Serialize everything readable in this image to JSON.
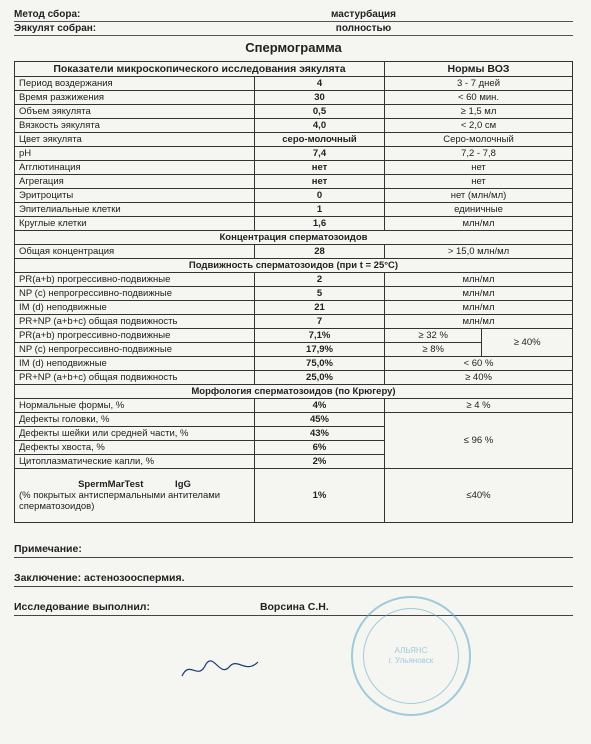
{
  "header": {
    "method_label": "Метод сбора:",
    "method_value": "мастурбация",
    "collected_label": "Эякулят собран:",
    "collected_value": "полностью"
  },
  "title": "Спермограмма",
  "col_headers": {
    "params": "Показатели микроскопического исследования эякулята",
    "norms": "Нормы ВОЗ"
  },
  "micro": [
    {
      "p": "Период воздержания",
      "v": "4",
      "n": "3 - 7 дней"
    },
    {
      "p": "Время разжижения",
      "v": "30",
      "n": "< 60 мин."
    },
    {
      "p": "Объем эякулята",
      "v": "0,5",
      "n": "≥ 1,5 мл"
    },
    {
      "p": "Вязкость эякулята",
      "v": "4,0",
      "n": "< 2,0 см"
    },
    {
      "p": "Цвет эякулята",
      "v": "серо-молочный",
      "n": "Серо-молочный"
    },
    {
      "p": "pH",
      "v": "7,4",
      "n": "7,2 - 7,8"
    },
    {
      "p": "Агглютинация",
      "v": "нет",
      "n": "нет"
    },
    {
      "p": "Агрегация",
      "v": "нет",
      "n": "нет"
    },
    {
      "p": "Эритроциты",
      "v": "0",
      "n": "нет (млн/мл)"
    },
    {
      "p": "Эпителиальные клетки",
      "v": "1",
      "n": "единичные"
    },
    {
      "p": "Круглые клетки",
      "v": "1,6",
      "n": "млн/мл"
    }
  ],
  "conc_header": "Концентрация сперматозоидов",
  "conc": {
    "p": "Общая концентрация",
    "v": "28",
    "n": "> 15,0 млн/мл"
  },
  "motility_header": "Подвижность сперматозоидов (при t = 25°C)",
  "motility_abs": [
    {
      "p": "PR(a+b) прогрессивно-подвижные",
      "v": "2",
      "n": "млн/мл"
    },
    {
      "p": "NP (с) непрогрессивно-подвижные",
      "v": "5",
      "n": "млн/мл"
    },
    {
      "p": "IM (d) неподвижные",
      "v": "21",
      "n": "млн/мл"
    },
    {
      "p": "PR+NP (a+b+c) общая подвижность",
      "v": "7",
      "n": "млн/мл"
    }
  ],
  "motility_pct": [
    {
      "p": "PR(a+b) прогрессивно-подвижные",
      "v": "7,1%",
      "n": "≥ 32 %"
    },
    {
      "p": "NP (с) непрогрессивно-подвижные",
      "v": "17,9%",
      "n": "≥ 8%"
    },
    {
      "p": "IM (d) неподвижные",
      "v": "75,0%",
      "n": "< 60 %"
    },
    {
      "p": "PR+NP (a+b+c) общая подвижность",
      "v": "25,0%",
      "n": "≥ 40%"
    }
  ],
  "motility_side_norm": "≥ 40%",
  "morph_header": "Морфология сперматозоидов (по Крюгеру)",
  "morph_normal": {
    "p": "Нормальные формы, %",
    "v": "4%",
    "n": "≥ 4 %"
  },
  "morph_defects": [
    {
      "p": "Дефекты головки, %",
      "v": "45%"
    },
    {
      "p": "Дефекты шейки или средней части, %",
      "v": "43%"
    },
    {
      "p": "Дефекты хвоста, %",
      "v": "6%"
    },
    {
      "p": "Цитоплазматические капли, %",
      "v": "2%"
    }
  ],
  "morph_defect_norm": "≤  96 %",
  "mar": {
    "label1": "SpermMarTest            IgG",
    "label2": "(% покрытых антиспермальными антителами сперматозоидов)",
    "v": "1%",
    "n": "≤40%"
  },
  "footer": {
    "notes_label": "Примечание:",
    "conclusion_label": "Заключение:",
    "conclusion_text": "астенозооспермия.",
    "performed_label": "Исследование выполнил:",
    "signer": "Ворсина С.Н."
  },
  "stamp_text": "АЛЬЯНС\nг. Ульяновск"
}
